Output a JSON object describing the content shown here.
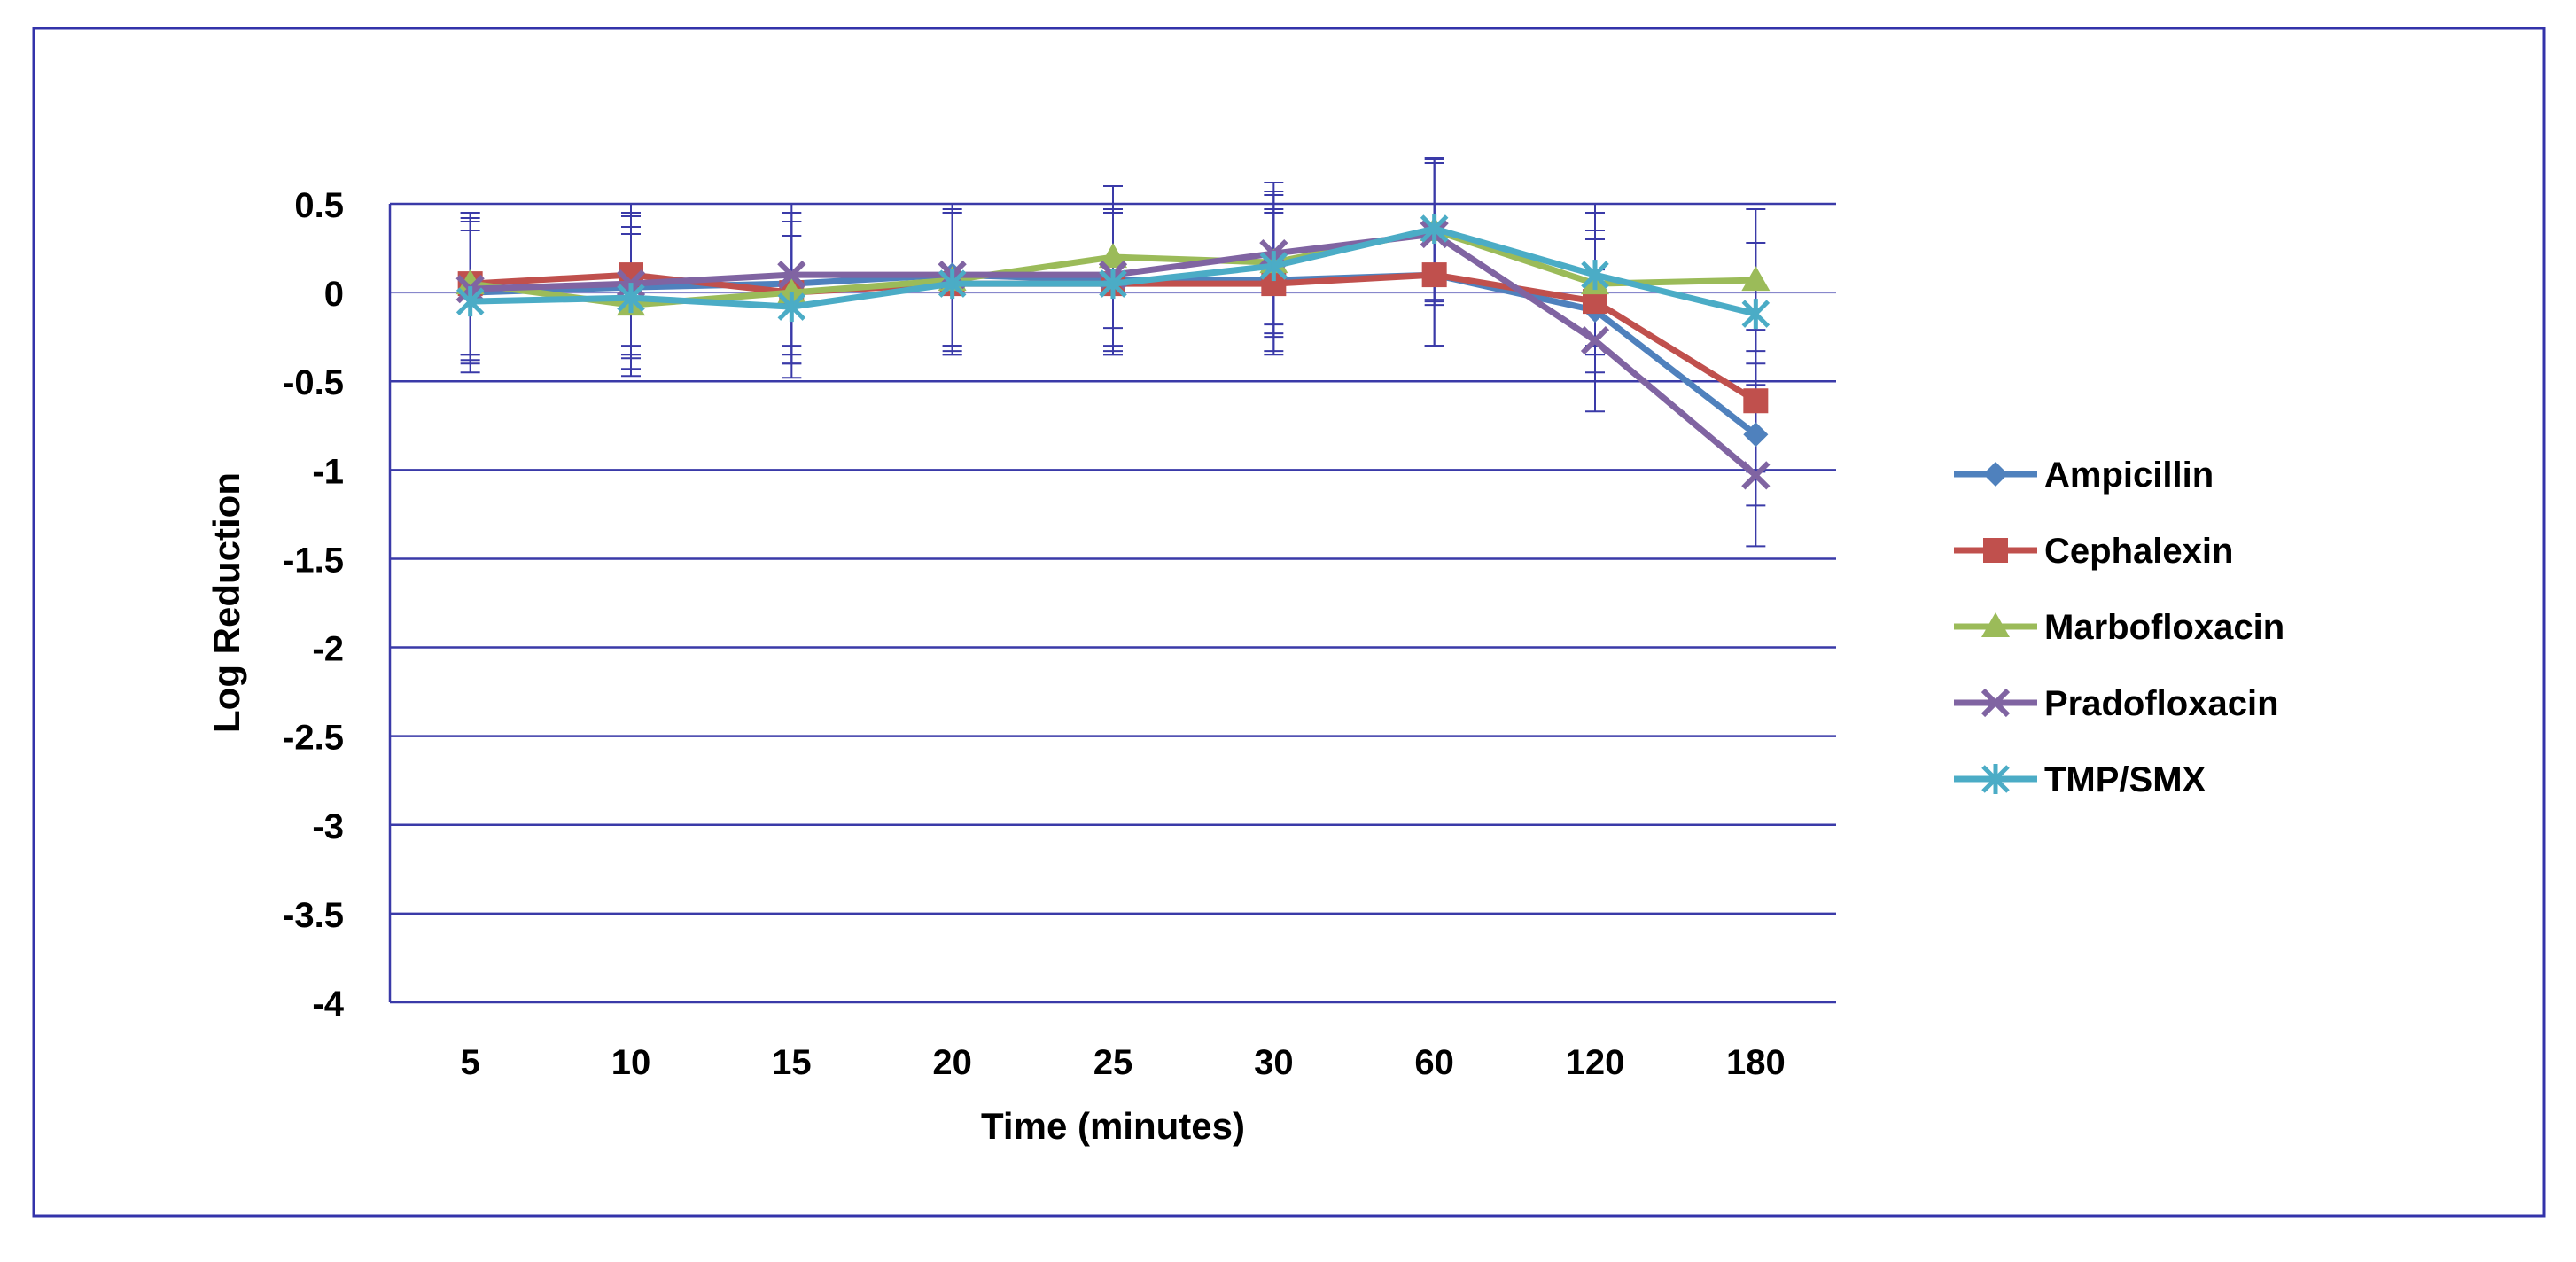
{
  "chart_data": {
    "type": "line",
    "title": "",
    "xlabel": "Time (minutes)",
    "ylabel": "Log Reduction",
    "categories": [
      "5",
      "10",
      "15",
      "20",
      "25",
      "30",
      "60",
      "120",
      "180"
    ],
    "ylim": [
      -4,
      0.5
    ],
    "yticks": [
      0.5,
      0,
      -0.5,
      -1,
      -1.5,
      -2,
      -2.5,
      -3,
      -3.5,
      -4
    ],
    "ytick_labels": [
      "0.5",
      "0",
      "-0.5",
      "-1",
      "-1.5",
      "-2",
      "-2.5",
      "-3",
      "-3.5",
      "-4"
    ],
    "grid": "horizontal",
    "legend": "right",
    "error_bar": 0.4,
    "series": [
      {
        "name": "Ampicillin",
        "color": "#4F81BD",
        "marker": "diamond",
        "values": [
          0.0,
          0.03,
          0.05,
          0.1,
          0.07,
          0.07,
          0.1,
          -0.1,
          -0.8
        ]
      },
      {
        "name": "Cephalexin",
        "color": "#C0504D",
        "marker": "square",
        "values": [
          0.05,
          0.1,
          0.0,
          0.05,
          0.05,
          0.05,
          0.1,
          -0.05,
          -0.61
        ]
      },
      {
        "name": "Marbofloxacin",
        "color": "#9BBB59",
        "marker": "triangle",
        "values": [
          0.05,
          -0.07,
          0.0,
          0.07,
          0.2,
          0.17,
          0.35,
          0.05,
          0.07
        ]
      },
      {
        "name": "Pradofloxacin",
        "color": "#8064A2",
        "marker": "x",
        "values": [
          0.02,
          0.05,
          0.1,
          0.1,
          0.1,
          0.22,
          0.33,
          -0.27,
          -1.03
        ]
      },
      {
        "name": "TMP/SMX",
        "color": "#4BACC6",
        "marker": "star",
        "values": [
          -0.05,
          -0.03,
          -0.08,
          0.05,
          0.05,
          0.15,
          0.36,
          0.1,
          -0.12
        ]
      }
    ]
  }
}
